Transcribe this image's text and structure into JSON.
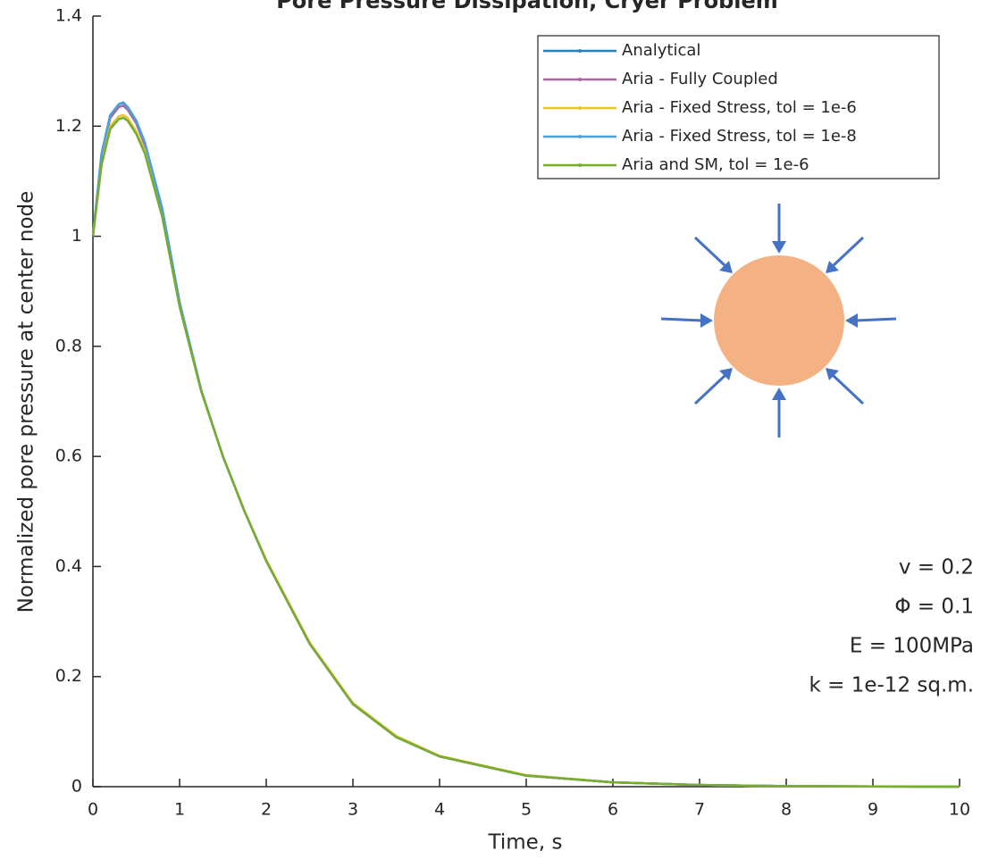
{
  "chart_data": {
    "type": "line",
    "title": "Pore Pressure Dissipation, Cryer Problem",
    "xlabel": "Time, s",
    "ylabel": "Normalized pore pressure at center node",
    "x": [
      0,
      0.1,
      0.2,
      0.3,
      0.35,
      0.4,
      0.5,
      0.6,
      0.8,
      1,
      1.25,
      1.5,
      1.75,
      2,
      2.5,
      3,
      3.5,
      4,
      5,
      6,
      7,
      8,
      9,
      10
    ],
    "series": [
      {
        "name": "Analytical",
        "color": "#2e7fb8",
        "values": [
          1.0,
          1.15,
          1.22,
          1.24,
          1.243,
          1.235,
          1.21,
          1.17,
          1.05,
          0.88,
          0.72,
          0.6,
          0.5,
          0.41,
          0.26,
          0.15,
          0.09,
          0.055,
          0.02,
          0.008,
          0.003,
          0.001,
          0.0005,
          0
        ]
      },
      {
        "name": "Aria - Fully Coupled",
        "color": "#a569a0",
        "values": [
          1.0,
          1.145,
          1.215,
          1.235,
          1.237,
          1.23,
          1.205,
          1.165,
          1.045,
          0.878,
          0.72,
          0.6,
          0.5,
          0.41,
          0.26,
          0.15,
          0.09,
          0.055,
          0.02,
          0.008,
          0.003,
          0.001,
          0.0005,
          0
        ]
      },
      {
        "name": "Aria - Fixed Stress, tol = 1e-6",
        "color": "#e6c52e",
        "values": [
          1.0,
          1.135,
          1.2,
          1.218,
          1.22,
          1.215,
          1.19,
          1.155,
          1.04,
          0.875,
          0.72,
          0.6,
          0.5,
          0.412,
          0.262,
          0.152,
          0.092,
          0.056,
          0.021,
          0.008,
          0.003,
          0.001,
          0.0005,
          0
        ]
      },
      {
        "name": "Aria - Fixed Stress, tol = 1e-8",
        "color": "#4ea0d8",
        "values": [
          1.0,
          1.15,
          1.22,
          1.24,
          1.242,
          1.235,
          1.21,
          1.17,
          1.05,
          0.88,
          0.72,
          0.6,
          0.5,
          0.41,
          0.26,
          0.15,
          0.09,
          0.055,
          0.02,
          0.008,
          0.003,
          0.001,
          0.0005,
          0
        ]
      },
      {
        "name": "Aria and SM, tol = 1e-6",
        "color": "#77ac30",
        "values": [
          1.0,
          1.13,
          1.195,
          1.213,
          1.215,
          1.21,
          1.186,
          1.15,
          1.035,
          0.872,
          0.718,
          0.6,
          0.5,
          0.41,
          0.26,
          0.15,
          0.09,
          0.055,
          0.02,
          0.008,
          0.003,
          0.001,
          0.0005,
          0
        ]
      }
    ],
    "xlim": [
      0,
      10
    ],
    "xticks": [
      0,
      1,
      2,
      3,
      4,
      5,
      6,
      7,
      8,
      9,
      10
    ],
    "ylim": [
      0,
      1.4
    ],
    "yticks": [
      0,
      0.2,
      0.4,
      0.6,
      0.8,
      1,
      1.2,
      1.4
    ],
    "grid": false,
    "legend": "upper right",
    "annotations": [
      "v = 0.2",
      "Φ = 0.1",
      "E = 100MPa",
      "k = 1e-12 sq.m."
    ]
  }
}
